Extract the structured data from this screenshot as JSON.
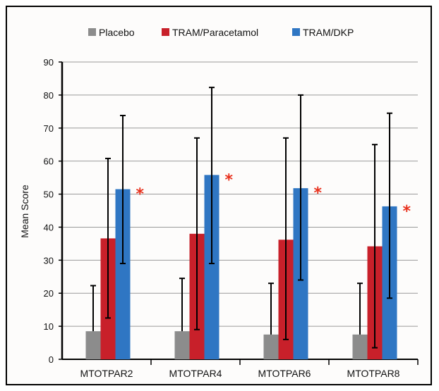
{
  "chart_data": {
    "type": "bar",
    "title": "",
    "xlabel": "",
    "ylabel": "Mean Score",
    "ylim": [
      0,
      90
    ],
    "yticks": [
      0,
      10,
      20,
      30,
      40,
      50,
      60,
      70,
      80,
      90
    ],
    "grid": true,
    "legend_position": "top",
    "categories": [
      "MTOTPAR2",
      "MTOTPAR4",
      "MTOTPAR6",
      "MTOTPAR8"
    ],
    "series": [
      {
        "name": "Placebo",
        "color": "#8c8c8c",
        "values": [
          8.5,
          8.5,
          7.5,
          7.5
        ],
        "error_upper": [
          22.3,
          24.5,
          23.0,
          23.0
        ]
      },
      {
        "name": "TRAM/Paracetamol",
        "color": "#c8202a",
        "values": [
          36.6,
          38.0,
          36.2,
          34.2
        ],
        "error_lower": [
          12.5,
          9.0,
          6.0,
          3.5
        ],
        "error_upper": [
          60.8,
          67.0,
          67.0,
          65.0
        ]
      },
      {
        "name": "TRAM/DKP",
        "color": "#2f76c3",
        "values": [
          51.5,
          55.8,
          51.8,
          46.3
        ],
        "error_lower": [
          29.0,
          29.0,
          24.0,
          18.5
        ],
        "error_upper": [
          73.8,
          82.3,
          80.0,
          74.5
        ]
      }
    ],
    "annotations": [
      {
        "category": "MTOTPAR2",
        "text": "*",
        "color": "#e8301c"
      },
      {
        "category": "MTOTPAR4",
        "text": "*",
        "color": "#e8301c"
      },
      {
        "category": "MTOTPAR6",
        "text": "*",
        "color": "#e8301c"
      },
      {
        "category": "MTOTPAR8",
        "text": "*",
        "color": "#e8301c"
      }
    ]
  }
}
